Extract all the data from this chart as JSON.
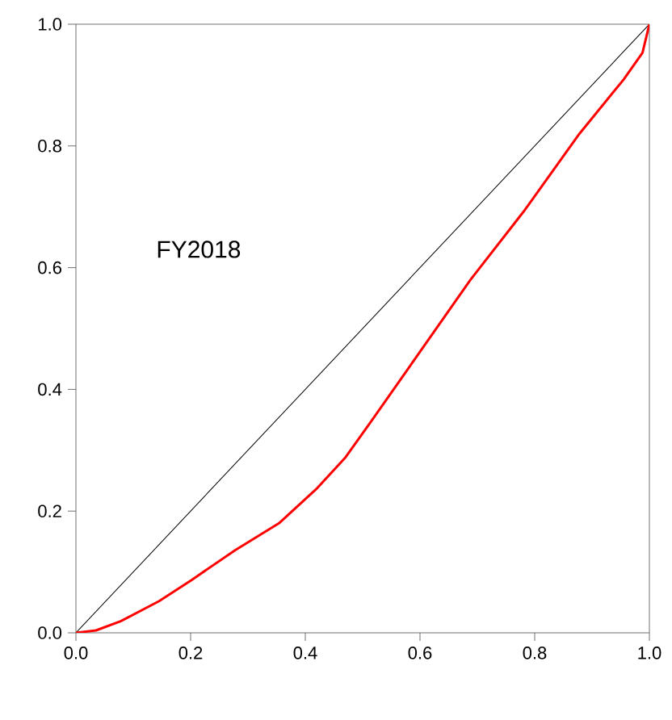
{
  "chart_data": {
    "type": "line",
    "annotations": [
      {
        "text": "FY2018"
      }
    ],
    "series": [
      {
        "color": "#000000",
        "x": [
          0,
          1
        ],
        "values": [
          0,
          1
        ]
      },
      {
        "color": "#ff0000",
        "x": [
          0,
          0.035,
          0.078,
          0.145,
          0.202,
          0.278,
          0.354,
          0.421,
          0.469,
          0.516,
          0.592,
          0.688,
          0.783,
          0.878,
          0.955,
          0.988,
          1
        ],
        "values": [
          0,
          0.004,
          0.019,
          0.052,
          0.087,
          0.136,
          0.18,
          0.238,
          0.287,
          0.349,
          0.451,
          0.58,
          0.695,
          0.82,
          0.909,
          0.953,
          1
        ]
      }
    ],
    "xlim": [
      0,
      1
    ],
    "ylim": [
      0,
      1
    ],
    "xticks": [
      {
        "value": 0,
        "label": "0.0"
      },
      {
        "value": 0.2,
        "label": "0.2"
      },
      {
        "value": 0.4,
        "label": "0.4"
      },
      {
        "value": 0.6,
        "label": "0.6"
      },
      {
        "value": 0.8,
        "label": "0.8"
      },
      {
        "value": 1,
        "label": "1.0"
      }
    ],
    "yticks": [
      {
        "value": 0,
        "label": "0.0"
      },
      {
        "value": 0.2,
        "label": "0.2"
      },
      {
        "value": 0.4,
        "label": "0.4"
      },
      {
        "value": 0.6,
        "label": "0.6"
      },
      {
        "value": 0.8,
        "label": "0.8"
      },
      {
        "value": 1,
        "label": "1.0"
      }
    ],
    "grid": false
  }
}
